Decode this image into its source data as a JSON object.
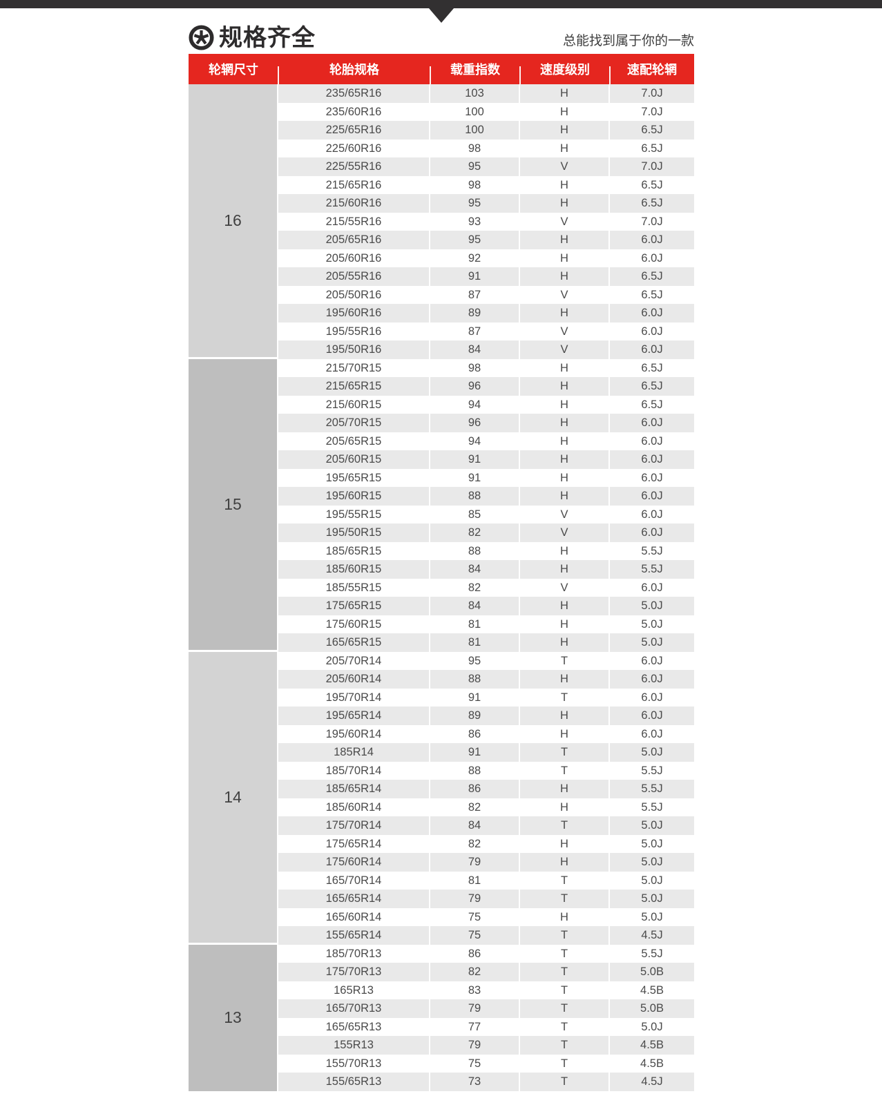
{
  "header": {
    "title": "规格齐全",
    "subtitle": "总能找到属于你的一款",
    "icon": "wheel-icon"
  },
  "colors": {
    "accent_red": "#e5261f",
    "top_bar": "#323031",
    "row_shade": "#e9e9e9",
    "rim_col_light": "#d3d3d3",
    "rim_col_dark": "#bebebe",
    "header_text": "#ffffff",
    "body_text": "#4a4a4a"
  },
  "table": {
    "headers": [
      "轮辋尺寸",
      "轮胎规格",
      "载重指数",
      "速度级别",
      "速配轮辋"
    ],
    "sections": [
      {
        "rim_size": "16",
        "rows": [
          [
            "235/65R16",
            "103",
            "H",
            "7.0J"
          ],
          [
            "235/60R16",
            "100",
            "H",
            "7.0J"
          ],
          [
            "225/65R16",
            "100",
            "H",
            "6.5J"
          ],
          [
            "225/60R16",
            "98",
            "H",
            "6.5J"
          ],
          [
            "225/55R16",
            "95",
            "V",
            "7.0J"
          ],
          [
            "215/65R16",
            "98",
            "H",
            "6.5J"
          ],
          [
            "215/60R16",
            "95",
            "H",
            "6.5J"
          ],
          [
            "215/55R16",
            "93",
            "V",
            "7.0J"
          ],
          [
            "205/65R16",
            "95",
            "H",
            "6.0J"
          ],
          [
            "205/60R16",
            "92",
            "H",
            "6.0J"
          ],
          [
            "205/55R16",
            "91",
            "H",
            "6.5J"
          ],
          [
            "205/50R16",
            "87",
            "V",
            "6.5J"
          ],
          [
            "195/60R16",
            "89",
            "H",
            "6.0J"
          ],
          [
            "195/55R16",
            "87",
            "V",
            "6.0J"
          ],
          [
            "195/50R16",
            "84",
            "V",
            "6.0J"
          ]
        ]
      },
      {
        "rim_size": "15",
        "rows": [
          [
            "215/70R15",
            "98",
            "H",
            "6.5J"
          ],
          [
            "215/65R15",
            "96",
            "H",
            "6.5J"
          ],
          [
            "215/60R15",
            "94",
            "H",
            "6.5J"
          ],
          [
            "205/70R15",
            "96",
            "H",
            "6.0J"
          ],
          [
            "205/65R15",
            "94",
            "H",
            "6.0J"
          ],
          [
            "205/60R15",
            "91",
            "H",
            "6.0J"
          ],
          [
            "195/65R15",
            "91",
            "H",
            "6.0J"
          ],
          [
            "195/60R15",
            "88",
            "H",
            "6.0J"
          ],
          [
            "195/55R15",
            "85",
            "V",
            "6.0J"
          ],
          [
            "195/50R15",
            "82",
            "V",
            "6.0J"
          ],
          [
            "185/65R15",
            "88",
            "H",
            "5.5J"
          ],
          [
            "185/60R15",
            "84",
            "H",
            "5.5J"
          ],
          [
            "185/55R15",
            "82",
            "V",
            "6.0J"
          ],
          [
            "175/65R15",
            "84",
            "H",
            "5.0J"
          ],
          [
            "175/60R15",
            "81",
            "H",
            "5.0J"
          ],
          [
            "165/65R15",
            "81",
            "H",
            "5.0J"
          ]
        ]
      },
      {
        "rim_size": "14",
        "rows": [
          [
            "205/70R14",
            "95",
            "T",
            "6.0J"
          ],
          [
            "205/60R14",
            "88",
            "H",
            "6.0J"
          ],
          [
            "195/70R14",
            "91",
            "T",
            "6.0J"
          ],
          [
            "195/65R14",
            "89",
            "H",
            "6.0J"
          ],
          [
            "195/60R14",
            "86",
            "H",
            "6.0J"
          ],
          [
            "185R14",
            "91",
            "T",
            "5.0J"
          ],
          [
            "185/70R14",
            "88",
            "T",
            "5.5J"
          ],
          [
            "185/65R14",
            "86",
            "H",
            "5.5J"
          ],
          [
            "185/60R14",
            "82",
            "H",
            "5.5J"
          ],
          [
            "175/70R14",
            "84",
            "T",
            "5.0J"
          ],
          [
            "175/65R14",
            "82",
            "H",
            "5.0J"
          ],
          [
            "175/60R14",
            "79",
            "H",
            "5.0J"
          ],
          [
            "165/70R14",
            "81",
            "T",
            "5.0J"
          ],
          [
            "165/65R14",
            "79",
            "T",
            "5.0J"
          ],
          [
            "165/60R14",
            "75",
            "H",
            "5.0J"
          ],
          [
            "155/65R14",
            "75",
            "T",
            "4.5J"
          ]
        ]
      },
      {
        "rim_size": "13",
        "rows": [
          [
            "185/70R13",
            "86",
            "T",
            "5.5J"
          ],
          [
            "175/70R13",
            "82",
            "T",
            "5.0B"
          ],
          [
            "165R13",
            "83",
            "T",
            "4.5B"
          ],
          [
            "165/70R13",
            "79",
            "T",
            "5.0B"
          ],
          [
            "165/65R13",
            "77",
            "T",
            "5.0J"
          ],
          [
            "155R13",
            "79",
            "T",
            "4.5B"
          ],
          [
            "155/70R13",
            "75",
            "T",
            "4.5B"
          ],
          [
            "155/65R13",
            "73",
            "T",
            "4.5J"
          ]
        ]
      }
    ]
  }
}
